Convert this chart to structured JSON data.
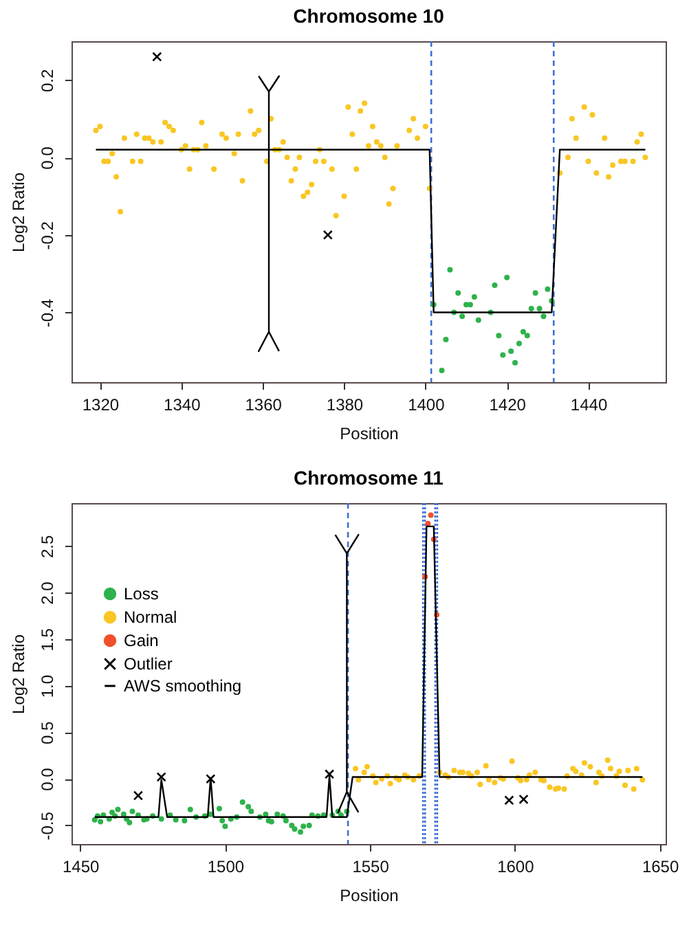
{
  "chart_data": [
    {
      "type": "scatter",
      "title": "Chromosome 10",
      "xlabel": "Position",
      "ylabel": "Log2 Ratio",
      "xlim": [
        1313,
        1459
      ],
      "ylim": [
        -0.58,
        0.3
      ],
      "xticks": [
        1320,
        1340,
        1360,
        1380,
        1400,
        1420,
        1440
      ],
      "yticks": [
        -0.4,
        -0.2,
        {
          "value": 0,
          "label": "0.0"
        },
        0.2
      ],
      "legend": false,
      "ref_lines": [
        {
          "axis": "x",
          "value": 1401.4,
          "color": "#3d6fd6",
          "line_style": "dashed"
        },
        {
          "axis": "x",
          "value": 1431.5,
          "color": "#3d6fd6",
          "line_style": "dashed"
        }
      ],
      "series": [
        {
          "marker": "circle",
          "color": "#f9c623",
          "x": [
            1319,
            1320,
            1321,
            1322,
            1323,
            1324,
            1325,
            1326,
            1328,
            1329,
            1330,
            1331,
            1332,
            1333,
            1335,
            1336,
            1337,
            1338,
            1340,
            1341,
            1342,
            1343,
            1344,
            1345,
            1346,
            1348,
            1350,
            1351,
            1353,
            1354,
            1355,
            1357,
            1358,
            1359,
            1361,
            1362,
            1363,
            1364,
            1365,
            1366,
            1367,
            1368,
            1369,
            1370,
            1371,
            1372,
            1373,
            1374,
            1375,
            1377,
            1378,
            1380,
            1381,
            1382,
            1383,
            1384,
            1385,
            1386,
            1387,
            1388,
            1389,
            1390,
            1391,
            1392,
            1393,
            1396,
            1397,
            1398,
            1400,
            1401,
            1433,
            1435,
            1436,
            1437,
            1439,
            1440,
            1441,
            1442,
            1444,
            1445,
            1446,
            1448,
            1449,
            1451,
            1452,
            1453,
            1454
          ],
          "values": [
            0.07,
            0.08,
            -0.01,
            -0.01,
            0.01,
            -0.05,
            -0.14,
            0.05,
            -0.01,
            0.06,
            -0.01,
            0.05,
            0.05,
            0.04,
            0.04,
            0.09,
            0.08,
            0.07,
            0.02,
            0.03,
            -0.03,
            0.02,
            0.02,
            0.09,
            0.03,
            -0.03,
            0.06,
            0.05,
            0.01,
            0.06,
            -0.06,
            0.12,
            0.06,
            0.07,
            -0.01,
            0.1,
            0.02,
            0.02,
            0.04,
            0,
            -0.06,
            -0.03,
            0,
            -0.1,
            -0.09,
            -0.07,
            -0.01,
            0.02,
            -0.01,
            -0.03,
            -0.15,
            -0.1,
            0.13,
            0.06,
            -0.03,
            0.12,
            0.14,
            0.03,
            0.08,
            0.04,
            0.03,
            0,
            -0.12,
            -0.08,
            0.03,
            0.07,
            0.1,
            0.05,
            0.08,
            -0.08,
            -0.04,
            0,
            0.1,
            0.05,
            0.13,
            -0.01,
            0.11,
            -0.04,
            0.05,
            -0.05,
            -0.02,
            -0.01,
            -0.01,
            -0.01,
            0.04,
            0.06,
            0
          ]
        },
        {
          "marker": "circle",
          "color": "#2eb24b",
          "x": [
            1402,
            1404,
            1405,
            1406,
            1407,
            1408,
            1409,
            1410,
            1411,
            1412,
            1413,
            1416,
            1417,
            1418,
            1419,
            1420,
            1421,
            1422,
            1423,
            1424,
            1425,
            1426,
            1427,
            1428,
            1429,
            1430,
            1431
          ],
          "values": [
            -0.38,
            -0.55,
            -0.47,
            -0.29,
            -0.4,
            -0.35,
            -0.41,
            -0.38,
            -0.38,
            -0.36,
            -0.42,
            -0.4,
            -0.33,
            -0.46,
            -0.51,
            -0.31,
            -0.5,
            -0.53,
            -0.48,
            -0.45,
            -0.46,
            -0.39,
            -0.35,
            -0.39,
            -0.41,
            -0.34,
            -0.37
          ]
        },
        {
          "marker": "cross",
          "color": "#000000",
          "x": [
            1334,
            1376
          ],
          "values": [
            0.26,
            -0.2
          ]
        },
        {
          "type": "line",
          "color": "#000000",
          "x": [
            1319,
            1401,
            1402,
            1431,
            1433,
            1454
          ],
          "values": [
            0.02,
            0.02,
            -0.4,
            -0.4,
            0.02,
            0.02
          ]
        },
        {
          "type": "line",
          "color": "#000000",
          "x": [
            1359,
            1361.5,
            1364,
            1361.5,
            1361.5,
            1359,
            1361.5,
            1364
          ],
          "values": [
            0.21,
            0.17,
            0.21,
            0.17,
            -0.45,
            -0.5,
            -0.45,
            -0.5
          ]
        }
      ]
    },
    {
      "type": "scatter",
      "title": "Chromosome 11",
      "xlabel": "Position",
      "ylabel": "Log2 Ratio",
      "xlim": [
        1447,
        1652
      ],
      "ylim": [
        -0.7,
        2.96
      ],
      "xticks": [
        1450,
        1500,
        1550,
        1600,
        1650
      ],
      "yticks": [
        -0.5,
        {
          "value": 0,
          "label": "0.0"
        },
        0.5,
        {
          "value": 1,
          "label": "1.0"
        },
        1.5,
        {
          "value": 2,
          "label": "2.0"
        },
        2.5
      ],
      "legend": "top left",
      "ref_lines": [
        {
          "axis": "x",
          "value": 1542.4,
          "color": "#3d6fd6",
          "line_style": "dashed"
        },
        {
          "axis": "x",
          "value": 1568.3,
          "color": "#3d6fd6",
          "line_style": "dotted"
        },
        {
          "axis": "x",
          "value": 1569,
          "color": "#3d6fd6",
          "line_style": "dotted"
        },
        {
          "axis": "x",
          "value": 1572.5,
          "color": "#3d6fd6",
          "line_style": "dotted"
        },
        {
          "axis": "x",
          "value": 1573.2,
          "color": "#3d6fd6",
          "line_style": "dotted"
        }
      ],
      "series": [
        {
          "name": "Loss",
          "marker": "circle",
          "color": "#2eb24b",
          "x": [
            1455,
            1456,
            1457,
            1458,
            1460,
            1461,
            1462,
            1463,
            1465,
            1466,
            1467,
            1468,
            1470,
            1472,
            1473,
            1475,
            1478,
            1481,
            1483,
            1486,
            1488,
            1490,
            1493,
            1495,
            1498,
            1499,
            1500,
            1502,
            1504,
            1506,
            1508,
            1509,
            1512,
            1514,
            1515,
            1516,
            1518,
            1520,
            1521,
            1523,
            1524,
            1526,
            1527,
            1529,
            1530,
            1532,
            1534,
            1537,
            1539,
            1540,
            1542
          ],
          "values": [
            -0.44,
            -0.4,
            -0.46,
            -0.39,
            -0.43,
            -0.36,
            -0.4,
            -0.33,
            -0.38,
            -0.43,
            -0.47,
            -0.35,
            -0.39,
            -0.44,
            -0.43,
            -0.4,
            -0.43,
            -0.39,
            -0.44,
            -0.45,
            -0.33,
            -0.41,
            -0.4,
            -0.38,
            -0.32,
            -0.45,
            -0.51,
            -0.43,
            -0.41,
            -0.25,
            -0.3,
            -0.35,
            -0.41,
            -0.38,
            -0.45,
            -0.46,
            -0.38,
            -0.4,
            -0.45,
            -0.5,
            -0.54,
            -0.57,
            -0.51,
            -0.5,
            -0.39,
            -0.4,
            -0.39,
            -0.39,
            -0.35,
            -0.39,
            -0.35
          ]
        },
        {
          "name": "Normal",
          "marker": "circle",
          "color": "#f9c623",
          "x": [
            1545,
            1546,
            1548,
            1549,
            1551,
            1552,
            1554,
            1556,
            1557,
            1559,
            1560,
            1562,
            1563,
            1565,
            1567,
            1574,
            1576,
            1577,
            1579,
            1581,
            1582,
            1584,
            1585,
            1587,
            1588,
            1590,
            1591,
            1593,
            1595,
            1596,
            1599,
            1601,
            1602,
            1604,
            1605,
            1607,
            1609,
            1610,
            1612,
            1614,
            1615,
            1617,
            1618,
            1620,
            1621,
            1623,
            1624,
            1626,
            1628,
            1629,
            1630,
            1632,
            1633,
            1635,
            1636,
            1638,
            1639,
            1641,
            1642,
            1644
          ],
          "values": [
            0.11,
            -0.01,
            0.07,
            0.13,
            0.03,
            -0.04,
            0,
            0.03,
            -0.05,
            0.01,
            -0.01,
            0.04,
            0.02,
            -0.01,
            0.03,
            0.07,
            0.04,
            0.02,
            0.09,
            0.07,
            0.07,
            0.06,
            0.03,
            0.07,
            -0.06,
            0.14,
            -0.01,
            -0.04,
            0.01,
            0,
            0.19,
            0.01,
            -0.02,
            -0.01,
            0.04,
            0.07,
            -0.01,
            -0.02,
            -0.09,
            -0.11,
            -0.1,
            -0.11,
            0.03,
            0.11,
            0.08,
            0.04,
            0.17,
            0.13,
            -0.04,
            0.07,
            0.03,
            0.2,
            0.11,
            0.03,
            0.08,
            -0.07,
            0.09,
            -0.11,
            0.11,
            -0.01
          ]
        },
        {
          "name": "Gain",
          "marker": "circle",
          "color": "#f0502a",
          "x": [
            1569,
            1570,
            1571,
            1572,
            1573
          ],
          "values": [
            2.17,
            2.74,
            2.83,
            2.57,
            1.76
          ]
        },
        {
          "name": "Outlier",
          "marker": "cross",
          "color": "#000000",
          "x": [
            1470,
            1478,
            1495,
            1536,
            1598,
            1603
          ],
          "values": [
            -0.18,
            0.02,
            0,
            0.05,
            -0.23,
            -0.22
          ]
        },
        {
          "name": "AWS smoothing",
          "type": "line",
          "color": "#000000",
          "x": [
            1455,
            1477,
            1478,
            1480,
            1494,
            1495,
            1496,
            1535,
            1536,
            1537,
            1542,
            1544,
            1568,
            1569.5,
            1572,
            1574,
            1644
          ],
          "values": [
            -0.41,
            -0.41,
            -0.01,
            -0.41,
            -0.41,
            0.01,
            -0.41,
            -0.41,
            0.03,
            -0.41,
            -0.41,
            0.02,
            0.02,
            2.71,
            2.71,
            0.02,
            0.02
          ]
        },
        {
          "type": "line",
          "color": "#000000",
          "x": [
            1538,
            1542,
            1546,
            1542,
            1542,
            1539,
            1542,
            1546
          ],
          "values": [
            2.62,
            2.42,
            2.62,
            2.42,
            -0.14,
            -0.36,
            -0.14,
            -0.36
          ]
        }
      ]
    }
  ]
}
